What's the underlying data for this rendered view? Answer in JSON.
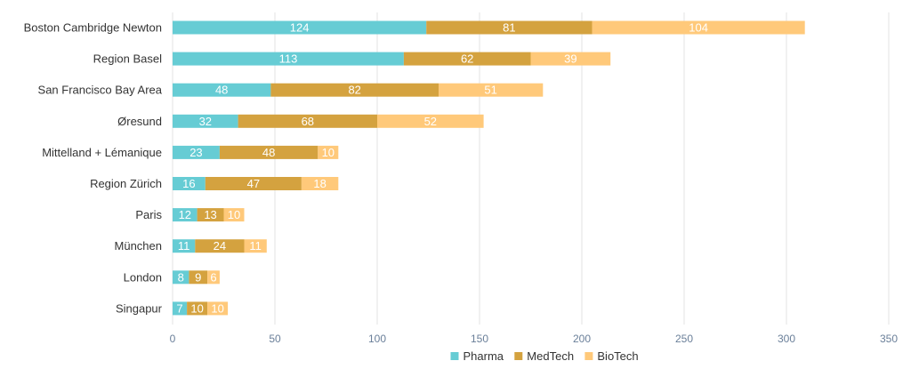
{
  "chart_data": {
    "type": "bar",
    "orientation": "horizontal",
    "stacked": true,
    "categories": [
      "Boston Cambridge Newton",
      "Region Basel",
      "San Francisco Bay Area",
      "Øresund",
      "Mittelland + Lémanique",
      "Region Zürich",
      "Paris",
      "München",
      "London",
      "Singapur"
    ],
    "series": [
      {
        "name": "Pharma",
        "color": "#66ccd4",
        "values": [
          124,
          113,
          48,
          32,
          23,
          16,
          12,
          11,
          8,
          7
        ]
      },
      {
        "name": "MedTech",
        "color": "#d4a23f",
        "values": [
          81,
          62,
          82,
          68,
          48,
          47,
          13,
          24,
          9,
          10
        ]
      },
      {
        "name": "BioTech",
        "color": "#ffc97a",
        "values": [
          104,
          39,
          51,
          52,
          10,
          18,
          10,
          11,
          6,
          10
        ]
      }
    ],
    "xlim": [
      0,
      350
    ],
    "xticks": [
      0,
      50,
      100,
      150,
      200,
      250,
      300,
      350
    ],
    "grid": true,
    "legend_position": "bottom",
    "data_labels": true
  }
}
